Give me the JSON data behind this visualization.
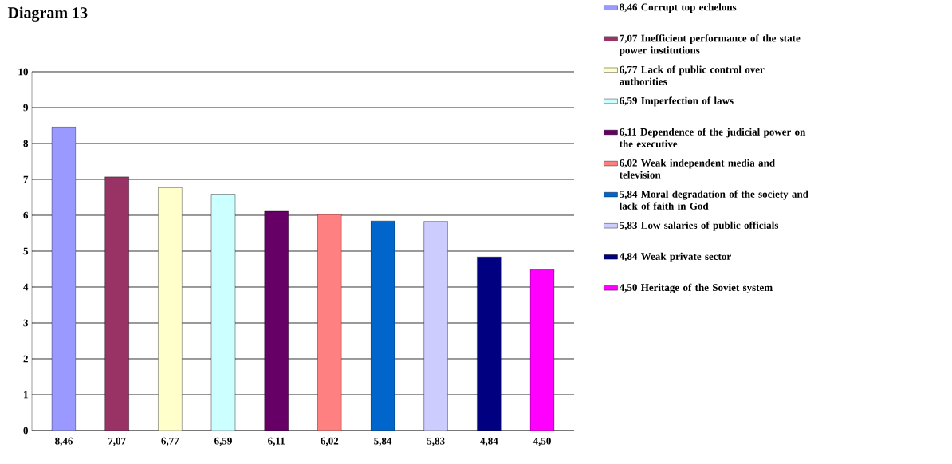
{
  "chart_data": {
    "type": "bar",
    "title": "Diagram 13",
    "categories": [
      "8,46",
      "7,07",
      "6,77",
      "6,59",
      "6,11",
      "6,02",
      "5,84",
      "5,83",
      "4,84",
      "4,50"
    ],
    "series": [
      {
        "name": "8,46 Corrupt top echelons",
        "color": "#9999ff",
        "values": [
          8.46,
          null,
          null,
          null,
          null,
          null,
          null,
          null,
          null,
          null
        ]
      },
      {
        "name": "7,07 Inefficient performance of the state power institutions",
        "color": "#993366",
        "values": [
          null,
          7.07,
          null,
          null,
          null,
          null,
          null,
          null,
          null,
          null
        ]
      },
      {
        "name": "6,77 Lack of public control over authorities",
        "color": "#ffffcc",
        "values": [
          null,
          null,
          6.77,
          null,
          null,
          null,
          null,
          null,
          null,
          null
        ]
      },
      {
        "name": "6,59 Imperfection of laws",
        "color": "#ccffff",
        "values": [
          null,
          null,
          null,
          6.59,
          null,
          null,
          null,
          null,
          null,
          null
        ]
      },
      {
        "name": "6,11 Dependence of the  judicial power on the executive",
        "color": "#660066",
        "values": [
          null,
          null,
          null,
          null,
          6.11,
          null,
          null,
          null,
          null,
          null
        ]
      },
      {
        "name": "6,02 Weak independent media and television",
        "color": "#ff8080",
        "values": [
          null,
          null,
          null,
          null,
          null,
          6.02,
          null,
          null,
          null,
          null
        ]
      },
      {
        "name": "5,84 Moral degradation of the society and lack of faith in God",
        "color": "#0066cc",
        "values": [
          null,
          null,
          null,
          null,
          null,
          null,
          5.84,
          null,
          null,
          null
        ]
      },
      {
        "name": "5,83 Low salaries  of public officials",
        "color": "#ccccff",
        "values": [
          null,
          null,
          null,
          null,
          null,
          null,
          null,
          5.83,
          null,
          null
        ]
      },
      {
        "name": "4,84 Weak private sector",
        "color": "#000080",
        "values": [
          null,
          null,
          null,
          null,
          null,
          null,
          null,
          null,
          4.84,
          null
        ]
      },
      {
        "name": "4,50 Heritage of the Soviet system",
        "color": "#ff00ff",
        "values": [
          null,
          null,
          null,
          null,
          null,
          null,
          null,
          null,
          null,
          4.5
        ]
      }
    ],
    "ylim": [
      0,
      10
    ],
    "yticks": [
      0,
      1,
      2,
      3,
      4,
      5,
      6,
      7,
      8,
      9,
      10
    ],
    "grid": "y",
    "legend": "right"
  }
}
